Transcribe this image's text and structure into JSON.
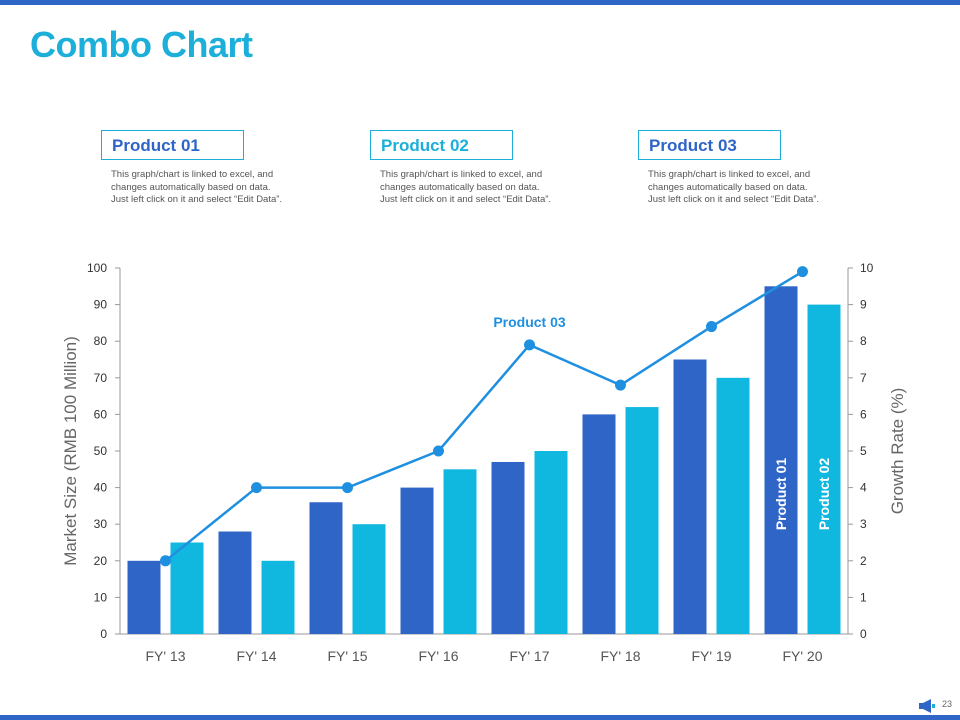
{
  "slide": {
    "title": "Combo Chart",
    "page_number": "23",
    "colors": {
      "bar1": "#3065C8",
      "bar2": "#10B8E0",
      "line": "#1F8FE0",
      "title": "#1CAFDA"
    }
  },
  "legend": [
    {
      "title": "Product 01",
      "color": "#3065C8",
      "desc1": "This graph/chart is linked to excel, and",
      "desc2": "changes automatically based on data.",
      "desc3": "Just left click on it and select “Edit Data”."
    },
    {
      "title": "Product 02",
      "color": "#1CAFDA",
      "desc1": "This graph/chart is linked to excel, and",
      "desc2": "changes automatically based on data.",
      "desc3": "Just left click on it and select “Edit Data”."
    },
    {
      "title": "Product 03",
      "color": "#3065C8",
      "desc1": "This graph/chart is linked to excel, and",
      "desc2": "changes automatically based on data.",
      "desc3": "Just left click on it and select “Edit Data”."
    }
  ],
  "chart_data": {
    "type": "bar",
    "categories": [
      "FY' 13",
      "FY' 14",
      "FY' 15",
      "FY' 16",
      "FY' 17",
      "FY' 18",
      "FY' 19",
      "FY' 20"
    ],
    "series": [
      {
        "name": "Product 01",
        "type": "bar",
        "axis": "left",
        "values": [
          20,
          28,
          36,
          40,
          47,
          60,
          75,
          95
        ]
      },
      {
        "name": "Product 02",
        "type": "bar",
        "axis": "left",
        "values": [
          25,
          20,
          30,
          45,
          50,
          62,
          70,
          90
        ]
      },
      {
        "name": "Product 03",
        "type": "line",
        "axis": "right",
        "values": [
          2,
          4,
          4,
          5,
          7.9,
          6.8,
          8.4,
          9.9
        ]
      }
    ],
    "ylabel": "Market Size (RMB 100 Million)",
    "y2label": "Growth Rate (%)",
    "ylim": [
      0,
      100
    ],
    "y2lim": [
      0,
      10
    ],
    "yticks": [
      "0",
      "10",
      "20",
      "30",
      "40",
      "50",
      "60",
      "70",
      "80",
      "90",
      "100"
    ],
    "y2ticks": [
      "0",
      "1",
      "2",
      "3",
      "4",
      "5",
      "6",
      "7",
      "8",
      "9",
      "10"
    ],
    "annotations": {
      "line_label": "Product 03",
      "bar1_label": "Product 01",
      "bar2_label": "Product 02"
    }
  }
}
